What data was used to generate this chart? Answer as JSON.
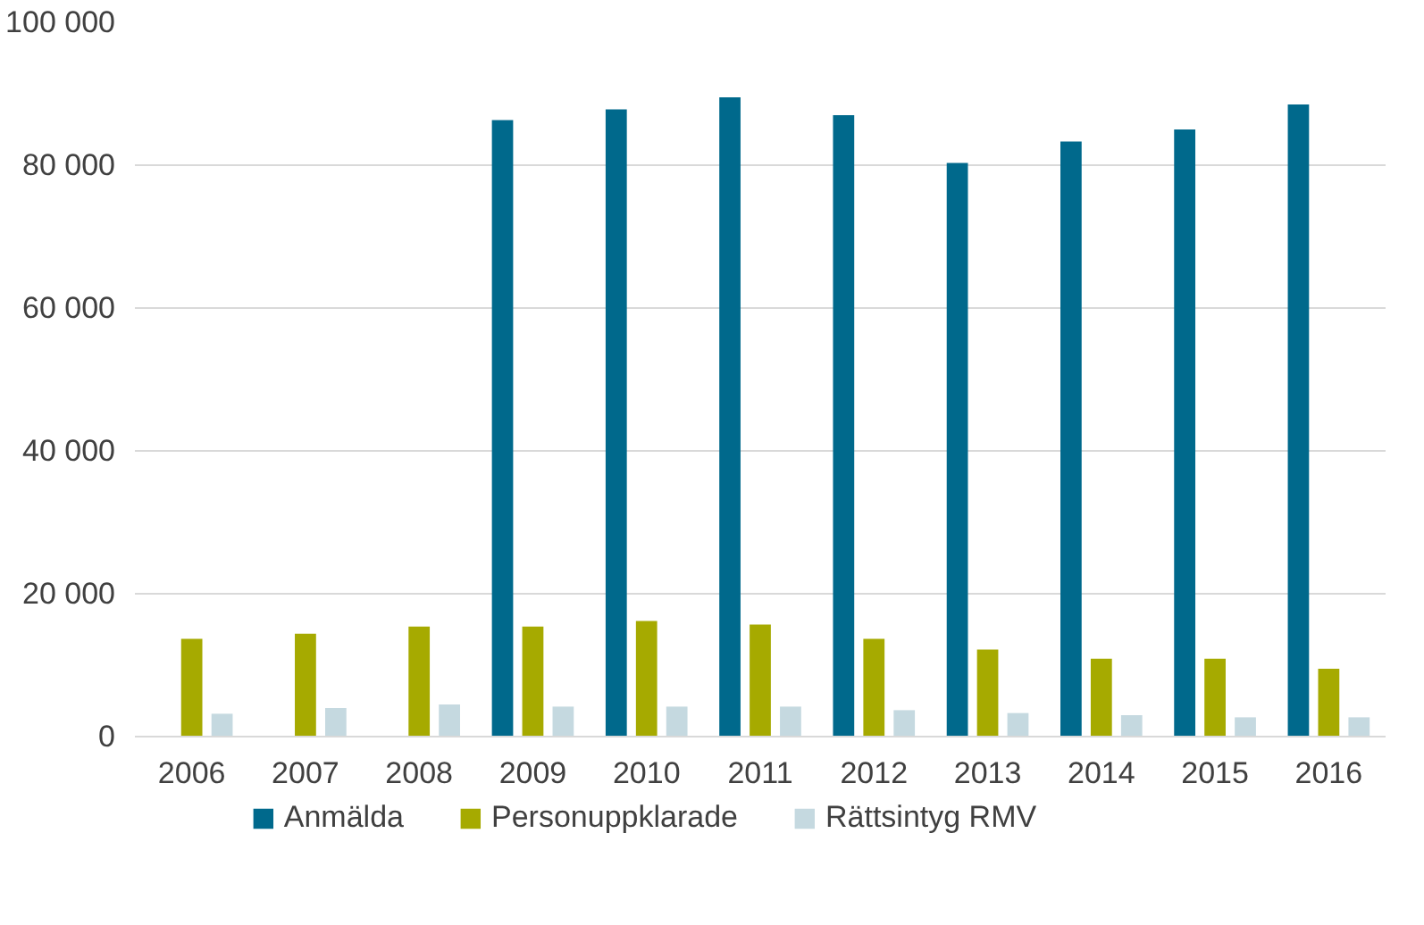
{
  "chart_data": {
    "type": "bar",
    "categories": [
      "2006",
      "2007",
      "2008",
      "2009",
      "2010",
      "2011",
      "2012",
      "2013",
      "2014",
      "2015",
      "2016"
    ],
    "series": [
      {
        "name": "Anmälda",
        "color": "#00698c",
        "values": [
          null,
          null,
          null,
          86300,
          87800,
          89500,
          87000,
          80300,
          83300,
          85000,
          88500
        ]
      },
      {
        "name": "Personuppklarade",
        "color": "#a6aa00",
        "values": [
          13700,
          14400,
          15400,
          15400,
          16200,
          15700,
          13700,
          12200,
          10900,
          10900,
          9500
        ]
      },
      {
        "name": "Rättsintyg RMV",
        "color": "#c5d9e0",
        "values": [
          3200,
          4000,
          4500,
          4200,
          4200,
          4200,
          3700,
          3300,
          3000,
          2700,
          2700
        ]
      }
    ],
    "ylim": [
      0,
      100000
    ],
    "yticks": [
      {
        "value": 0,
        "label": "0"
      },
      {
        "value": 20000,
        "label": "20 000"
      },
      {
        "value": 40000,
        "label": "40 000"
      },
      {
        "value": 60000,
        "label": "60 000"
      },
      {
        "value": 80000,
        "label": "80 000"
      },
      {
        "value": 100000,
        "label": "100 000"
      }
    ],
    "grid": "y",
    "legend": "bottom"
  }
}
